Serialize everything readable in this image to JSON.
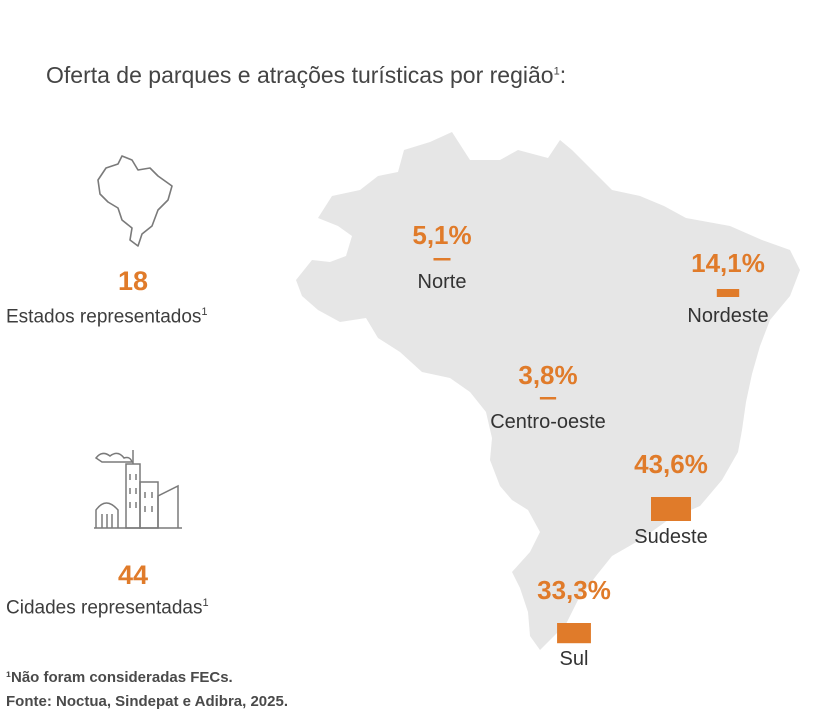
{
  "title": {
    "text": "Oferta de parques e atrações turísticas por região",
    "sup": "1",
    "suffix": ":"
  },
  "stats": [
    {
      "value": "18",
      "label": "Estados representados",
      "sup": "1",
      "icon": "brazil-map-icon"
    },
    {
      "value": "44",
      "label": "Cidades representadas",
      "sup": "1",
      "icon": "city-buildings-icon"
    }
  ],
  "chart_data": {
    "type": "bar",
    "title": "Oferta de parques e atrações turísticas por região",
    "categories": [
      "Norte",
      "Nordeste",
      "Centro-oeste",
      "Sudeste",
      "Sul"
    ],
    "values": [
      5.1,
      14.1,
      3.8,
      43.6,
      33.3
    ],
    "value_labels": [
      "5,1%",
      "14,1%",
      "3,8%",
      "43,6%",
      "33,3%"
    ],
    "unit": "%",
    "colors": {
      "bar": "#e07b2a",
      "label": "#e07b2a",
      "map": "#e6e6e6"
    }
  },
  "footnotes": {
    "note": "¹Não foram consideradas FECs.",
    "source": "Fonte: Noctua, Sindepat e Adibra, 2025."
  }
}
